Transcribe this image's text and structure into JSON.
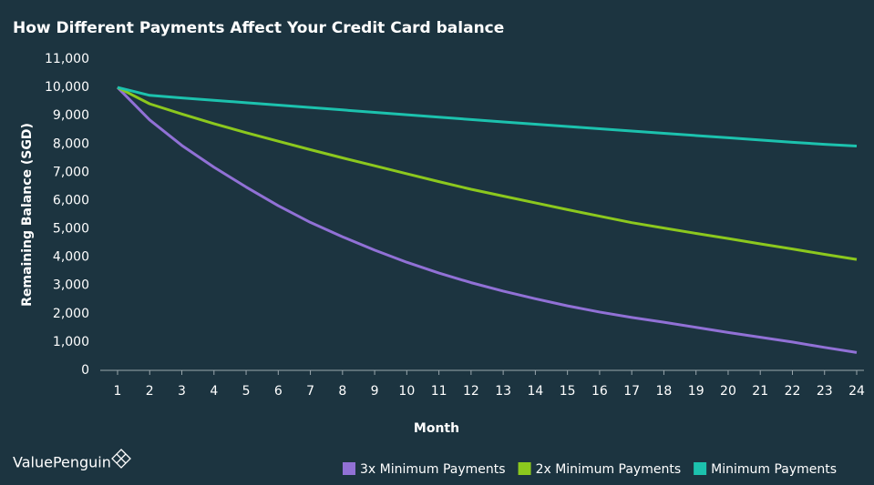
{
  "chart_data": {
    "type": "line",
    "title": "How Different Payments Affect Your Credit Card balance",
    "x_label": "Month",
    "y_label": "Remaining Balance (SGD)",
    "brand": "ValuePenguin",
    "x": [
      1,
      2,
      3,
      4,
      5,
      6,
      7,
      8,
      9,
      10,
      11,
      12,
      13,
      14,
      15,
      16,
      17,
      18,
      19,
      20,
      21,
      22,
      23,
      24
    ],
    "xlim": [
      1,
      24
    ],
    "xticks": [
      1,
      2,
      3,
      4,
      5,
      6,
      7,
      8,
      9,
      10,
      11,
      12,
      13,
      14,
      15,
      16,
      17,
      18,
      19,
      20,
      21,
      22,
      23,
      24
    ],
    "ylim": [
      0,
      11000
    ],
    "yticks": [
      0,
      {
        "value": 1000,
        "label": "1,000"
      },
      {
        "value": 2000,
        "label": "2,000"
      },
      {
        "value": 3000,
        "label": "3,000"
      },
      {
        "value": 4000,
        "label": "4,000"
      },
      {
        "value": 5000,
        "label": "5,000"
      },
      {
        "value": 6000,
        "label": "6,000"
      },
      {
        "value": 7000,
        "label": "7,000"
      },
      {
        "value": 8000,
        "label": "8,000"
      },
      {
        "value": 9000,
        "label": "9,000"
      },
      {
        "value": 10000,
        "label": "10,000"
      },
      {
        "value": 11000,
        "label": "11,000"
      }
    ],
    "grid": false,
    "legend": "bottom-right",
    "series": [
      {
        "name": "3x Minimum Payments",
        "color": "#9171d6",
        "values": [
          10000,
          8850,
          7950,
          7180,
          6480,
          5820,
          5230,
          4720,
          4250,
          3820,
          3440,
          3100,
          2800,
          2530,
          2280,
          2060,
          1870,
          1700,
          1520,
          1340,
          1170,
          1000,
          810,
          630
        ]
      },
      {
        "name": "2x Minimum Payments",
        "color": "#8cc81e",
        "values": [
          10000,
          9420,
          9060,
          8720,
          8400,
          8100,
          7800,
          7510,
          7230,
          6950,
          6670,
          6400,
          6160,
          5920,
          5680,
          5450,
          5220,
          5030,
          4840,
          4660,
          4470,
          4290,
          4100,
          3920
        ]
      },
      {
        "name": "Minimum Payments",
        "color": "#1cc2ae",
        "values": [
          10000,
          9720,
          9630,
          9545,
          9460,
          9375,
          9290,
          9205,
          9120,
          9035,
          8950,
          8865,
          8780,
          8700,
          8620,
          8540,
          8460,
          8380,
          8300,
          8220,
          8140,
          8060,
          7990,
          7930
        ]
      }
    ]
  }
}
